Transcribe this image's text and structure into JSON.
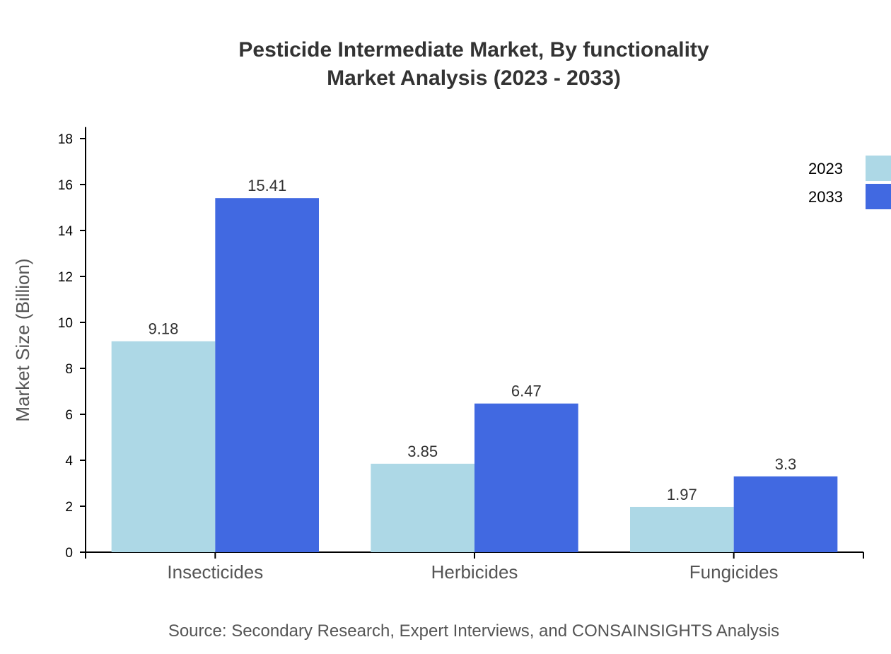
{
  "chart_data": {
    "type": "bar",
    "title": "Pesticide Intermediate Market, By functionality",
    "subtitle": "Market Analysis (2023 - 2033)",
    "xlabel": "",
    "ylabel": "Market Size (Billion)",
    "ylim": [
      0,
      18.5
    ],
    "yticks": [
      0,
      2,
      4,
      6,
      8,
      10,
      12,
      14,
      16,
      18
    ],
    "categories": [
      "Insecticides",
      "Herbicides",
      "Fungicides"
    ],
    "series": [
      {
        "name": "2023",
        "color": "#ADD8E6",
        "values": [
          9.18,
          3.85,
          1.97
        ]
      },
      {
        "name": "2033",
        "color": "#4169E1",
        "values": [
          15.41,
          6.47,
          3.3
        ]
      }
    ],
    "legend": "top-right",
    "grid": false,
    "source": "Source: Secondary Research, Expert Interviews, and CONSAINSIGHTS Analysis"
  }
}
